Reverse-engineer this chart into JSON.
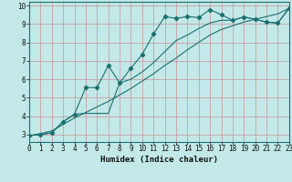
{
  "title": "",
  "xlabel": "Humidex (Indice chaleur)",
  "bg_color": "#c2e8e8",
  "grid_color": "#c8a0a0",
  "line_color": "#1a7070",
  "x_values": [
    0,
    1,
    2,
    3,
    4,
    5,
    6,
    7,
    8,
    9,
    10,
    11,
    12,
    13,
    14,
    15,
    16,
    17,
    18,
    19,
    20,
    21,
    22,
    23
  ],
  "line1_y": [
    2.95,
    3.0,
    3.1,
    3.7,
    4.1,
    5.55,
    5.55,
    6.75,
    5.8,
    6.6,
    7.35,
    8.45,
    9.4,
    9.3,
    9.4,
    9.35,
    9.78,
    9.5,
    9.2,
    9.38,
    9.25,
    9.1,
    9.05,
    9.85
  ],
  "line2_y": [
    2.95,
    3.0,
    3.1,
    3.7,
    4.1,
    4.15,
    4.15,
    4.15,
    5.8,
    6.0,
    6.4,
    6.9,
    7.5,
    8.1,
    8.4,
    8.75,
    9.05,
    9.2,
    9.2,
    9.38,
    9.25,
    9.1,
    9.05,
    9.85
  ],
  "line3_y": [
    2.95,
    3.05,
    3.2,
    3.55,
    3.9,
    4.2,
    4.5,
    4.8,
    5.15,
    5.5,
    5.9,
    6.3,
    6.75,
    7.15,
    7.6,
    8.0,
    8.4,
    8.7,
    8.9,
    9.1,
    9.25,
    9.4,
    9.55,
    9.85
  ],
  "xlim": [
    0,
    23
  ],
  "ylim": [
    2.6,
    10.2
  ],
  "yticks": [
    3,
    4,
    5,
    6,
    7,
    8,
    9,
    10
  ],
  "xticks": [
    0,
    1,
    2,
    3,
    4,
    5,
    6,
    7,
    8,
    9,
    10,
    11,
    12,
    13,
    14,
    15,
    16,
    17,
    18,
    19,
    20,
    21,
    22,
    23
  ],
  "tick_fontsize": 5.5,
  "xlabel_fontsize": 6.5
}
